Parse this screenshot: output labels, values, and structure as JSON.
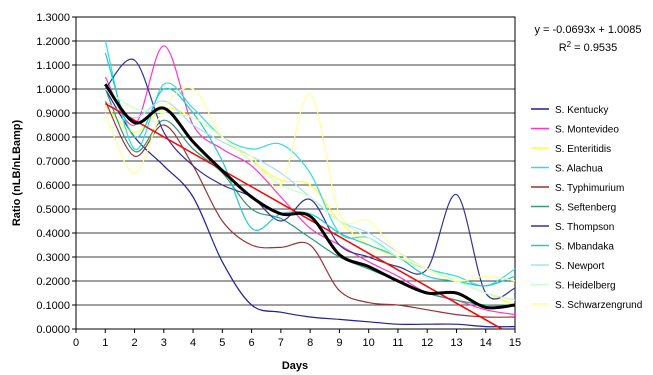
{
  "chart_data": {
    "type": "line",
    "title": "",
    "xlabel": "Days",
    "ylabel": "Ratio (nLB/nLBamp)",
    "xlim": [
      0,
      15
    ],
    "ylim": [
      0,
      1.3
    ],
    "x_ticks": [
      "0",
      "1",
      "2",
      "3",
      "4",
      "5",
      "6",
      "7",
      "8",
      "9",
      "10",
      "11",
      "12",
      "13",
      "14",
      "15"
    ],
    "y_ticks": [
      "0.0000",
      "0.1000",
      "0.2000",
      "0.3000",
      "0.4000",
      "0.5000",
      "0.6000",
      "0.7000",
      "0.8000",
      "0.9000",
      "1.0000",
      "1.1000",
      "1.2000",
      "1.3000"
    ],
    "grid": "horizontal",
    "legend_position": "right",
    "x": [
      1,
      2,
      3,
      4,
      5,
      6,
      7,
      8,
      9,
      10,
      11,
      12,
      13,
      14,
      15
    ],
    "series": [
      {
        "name": "S. Kentucky",
        "color": "#1f1f9c",
        "values": [
          1.0,
          0.8,
          0.68,
          0.55,
          0.28,
          0.1,
          0.07,
          0.05,
          0.04,
          0.03,
          0.02,
          0.02,
          0.02,
          0.01,
          0.01
        ]
      },
      {
        "name": "S. Montevideo",
        "color": "#ff33cc",
        "values": [
          1.05,
          0.85,
          1.18,
          0.85,
          0.75,
          0.68,
          0.55,
          0.42,
          0.35,
          0.28,
          0.22,
          0.15,
          0.12,
          0.08,
          0.06
        ]
      },
      {
        "name": "S. Enteritidis",
        "color": "#ffff33",
        "values": [
          0.93,
          0.82,
          0.92,
          0.88,
          0.8,
          0.7,
          0.62,
          0.6,
          0.45,
          0.35,
          0.3,
          0.25,
          0.2,
          0.15,
          0.1
        ]
      },
      {
        "name": "S. Alachua",
        "color": "#33dddd",
        "values": [
          1.2,
          0.75,
          1.02,
          0.92,
          0.8,
          0.75,
          0.77,
          0.65,
          0.4,
          0.38,
          0.3,
          0.25,
          0.22,
          0.18,
          0.25
        ]
      },
      {
        "name": "S. Typhimurium",
        "color": "#993333",
        "values": [
          0.95,
          0.72,
          0.85,
          0.68,
          0.45,
          0.35,
          0.34,
          0.35,
          0.16,
          0.11,
          0.1,
          0.08,
          0.06,
          0.05,
          0.05
        ]
      },
      {
        "name": "S. Seftenberg",
        "color": "#339977",
        "values": [
          1.0,
          0.74,
          0.87,
          0.75,
          0.65,
          0.5,
          0.46,
          0.38,
          0.3,
          0.25,
          0.2,
          0.15,
          0.12,
          0.1,
          0.1
        ]
      },
      {
        "name": "S. Thompson",
        "color": "#333399",
        "values": [
          1.0,
          1.12,
          0.82,
          0.68,
          0.6,
          0.55,
          0.45,
          0.54,
          0.35,
          0.3,
          0.26,
          0.25,
          0.56,
          0.15,
          0.17
        ]
      },
      {
        "name": "S. Mbandaka",
        "color": "#22cccc",
        "values": [
          1.15,
          0.8,
          1.0,
          0.9,
          0.7,
          0.42,
          0.48,
          0.48,
          0.4,
          0.35,
          0.3,
          0.22,
          0.2,
          0.18,
          0.22
        ]
      },
      {
        "name": "S. Newport",
        "color": "#aaddff",
        "values": [
          0.95,
          0.88,
          0.95,
          0.85,
          0.78,
          0.72,
          0.65,
          0.55,
          0.45,
          0.4,
          0.32,
          0.25,
          0.2,
          0.15,
          0.12
        ]
      },
      {
        "name": "S. Heidelberg",
        "color": "#ccffcc",
        "values": [
          1.0,
          0.92,
          0.9,
          0.88,
          0.8,
          0.7,
          0.6,
          0.55,
          0.45,
          0.38,
          0.3,
          0.25,
          0.2,
          0.15,
          0.12
        ]
      },
      {
        "name": "S. Schwarzengrund",
        "color": "#ffff99",
        "values": [
          0.9,
          0.65,
          0.92,
          1.0,
          0.8,
          0.72,
          0.6,
          0.98,
          0.48,
          0.45,
          0.32,
          0.25,
          0.2,
          0.22,
          0.2
        ]
      }
    ],
    "average": {
      "color": "#000000",
      "values": [
        1.02,
        0.86,
        0.92,
        0.78,
        0.66,
        0.55,
        0.48,
        0.47,
        0.31,
        0.26,
        0.2,
        0.15,
        0.15,
        0.09,
        0.1
      ]
    },
    "trendline": {
      "color": "#ff0000",
      "slope": -0.0693,
      "intercept": 1.0085
    },
    "equation": "y = -0.0693x + 1.0085",
    "r2_prefix": "R",
    "r2_exp": "2",
    "r2_value": " = 0.9535"
  }
}
